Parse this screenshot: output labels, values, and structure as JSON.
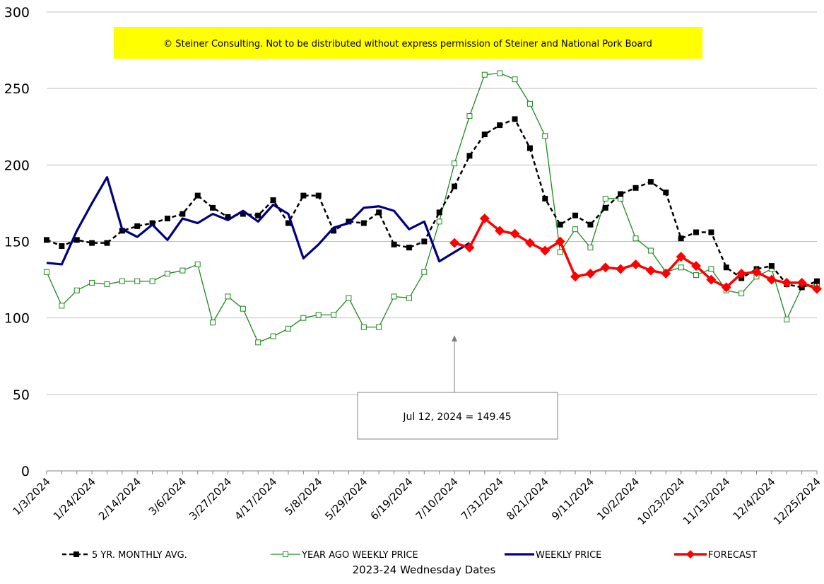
{
  "chart_data": {
    "type": "line",
    "xlabel": "2023-24 Wednesday Dates",
    "ylim": [
      0,
      300
    ],
    "yticks": [
      0,
      50,
      100,
      150,
      200,
      250,
      300
    ],
    "grid": "horizontal",
    "legend_position": "bottom",
    "x_tick_labels": [
      "1/3/2024",
      "1/24/2024",
      "2/14/2024",
      "3/6/2024",
      "3/27/2024",
      "4/17/2024",
      "5/8/2024",
      "5/29/2024",
      "6/19/2024",
      "7/10/2024",
      "7/31/2024",
      "8/21/2024",
      "9/11/2024",
      "10/2/2024",
      "10/23/2024",
      "11/13/2024",
      "12/4/2024",
      "12/25/2024"
    ],
    "copyright": "© Steiner Consulting.  Not to be distributed without express permission of Steiner and National Pork Board",
    "annotation": {
      "text": "Jul 12, 2024  = 149.45",
      "points_to_week": 27
    },
    "series": [
      {
        "name": "5 YR. MONTHLY AVG.",
        "color": "#000000",
        "style": "dashed-square",
        "start_week": 0,
        "values": [
          151,
          147,
          151,
          149,
          149,
          157,
          160,
          162,
          165,
          168,
          180,
          172,
          166,
          168,
          167,
          177,
          162,
          180,
          180,
          157,
          163,
          162,
          169,
          148,
          146,
          150,
          169,
          186,
          206,
          220,
          226,
          230,
          211,
          178,
          161,
          167,
          161,
          172,
          181,
          185,
          189,
          182,
          152,
          156,
          156,
          133,
          126,
          132,
          134,
          122,
          120,
          124
        ]
      },
      {
        "name": "YEAR AGO WEEKLY PRICE",
        "color": "#1a8a1a",
        "style": "hollow-square",
        "start_week": 0,
        "values": [
          130,
          108,
          118,
          123,
          122,
          124,
          124,
          124,
          129,
          131,
          135,
          97,
          114,
          106,
          84,
          88,
          93,
          100,
          102,
          102,
          113,
          94,
          94,
          114,
          113,
          130,
          163,
          201,
          232,
          259,
          260,
          256,
          240,
          219,
          143,
          158,
          146,
          178,
          178,
          152,
          144,
          130,
          133,
          128,
          132,
          118,
          116,
          127,
          132,
          99,
          120,
          122
        ]
      },
      {
        "name": "WEEKLY PRICE",
        "color": "#000080",
        "style": "solid",
        "start_week": 0,
        "values": [
          136,
          135,
          157,
          175,
          192,
          158,
          153,
          161,
          151,
          165,
          162,
          168,
          164,
          170,
          163,
          174,
          168,
          139,
          148,
          159,
          162,
          172,
          173,
          170,
          158,
          163,
          137,
          143,
          149
        ]
      },
      {
        "name": "FORECAST",
        "color": "#ff0000",
        "style": "diamond",
        "start_week": 27,
        "values": [
          149,
          146,
          165,
          157,
          155,
          149,
          144,
          150,
          127,
          129,
          133,
          132,
          135,
          131,
          129,
          140,
          134,
          125,
          120,
          129,
          130,
          125,
          123,
          123,
          119
        ]
      }
    ]
  }
}
